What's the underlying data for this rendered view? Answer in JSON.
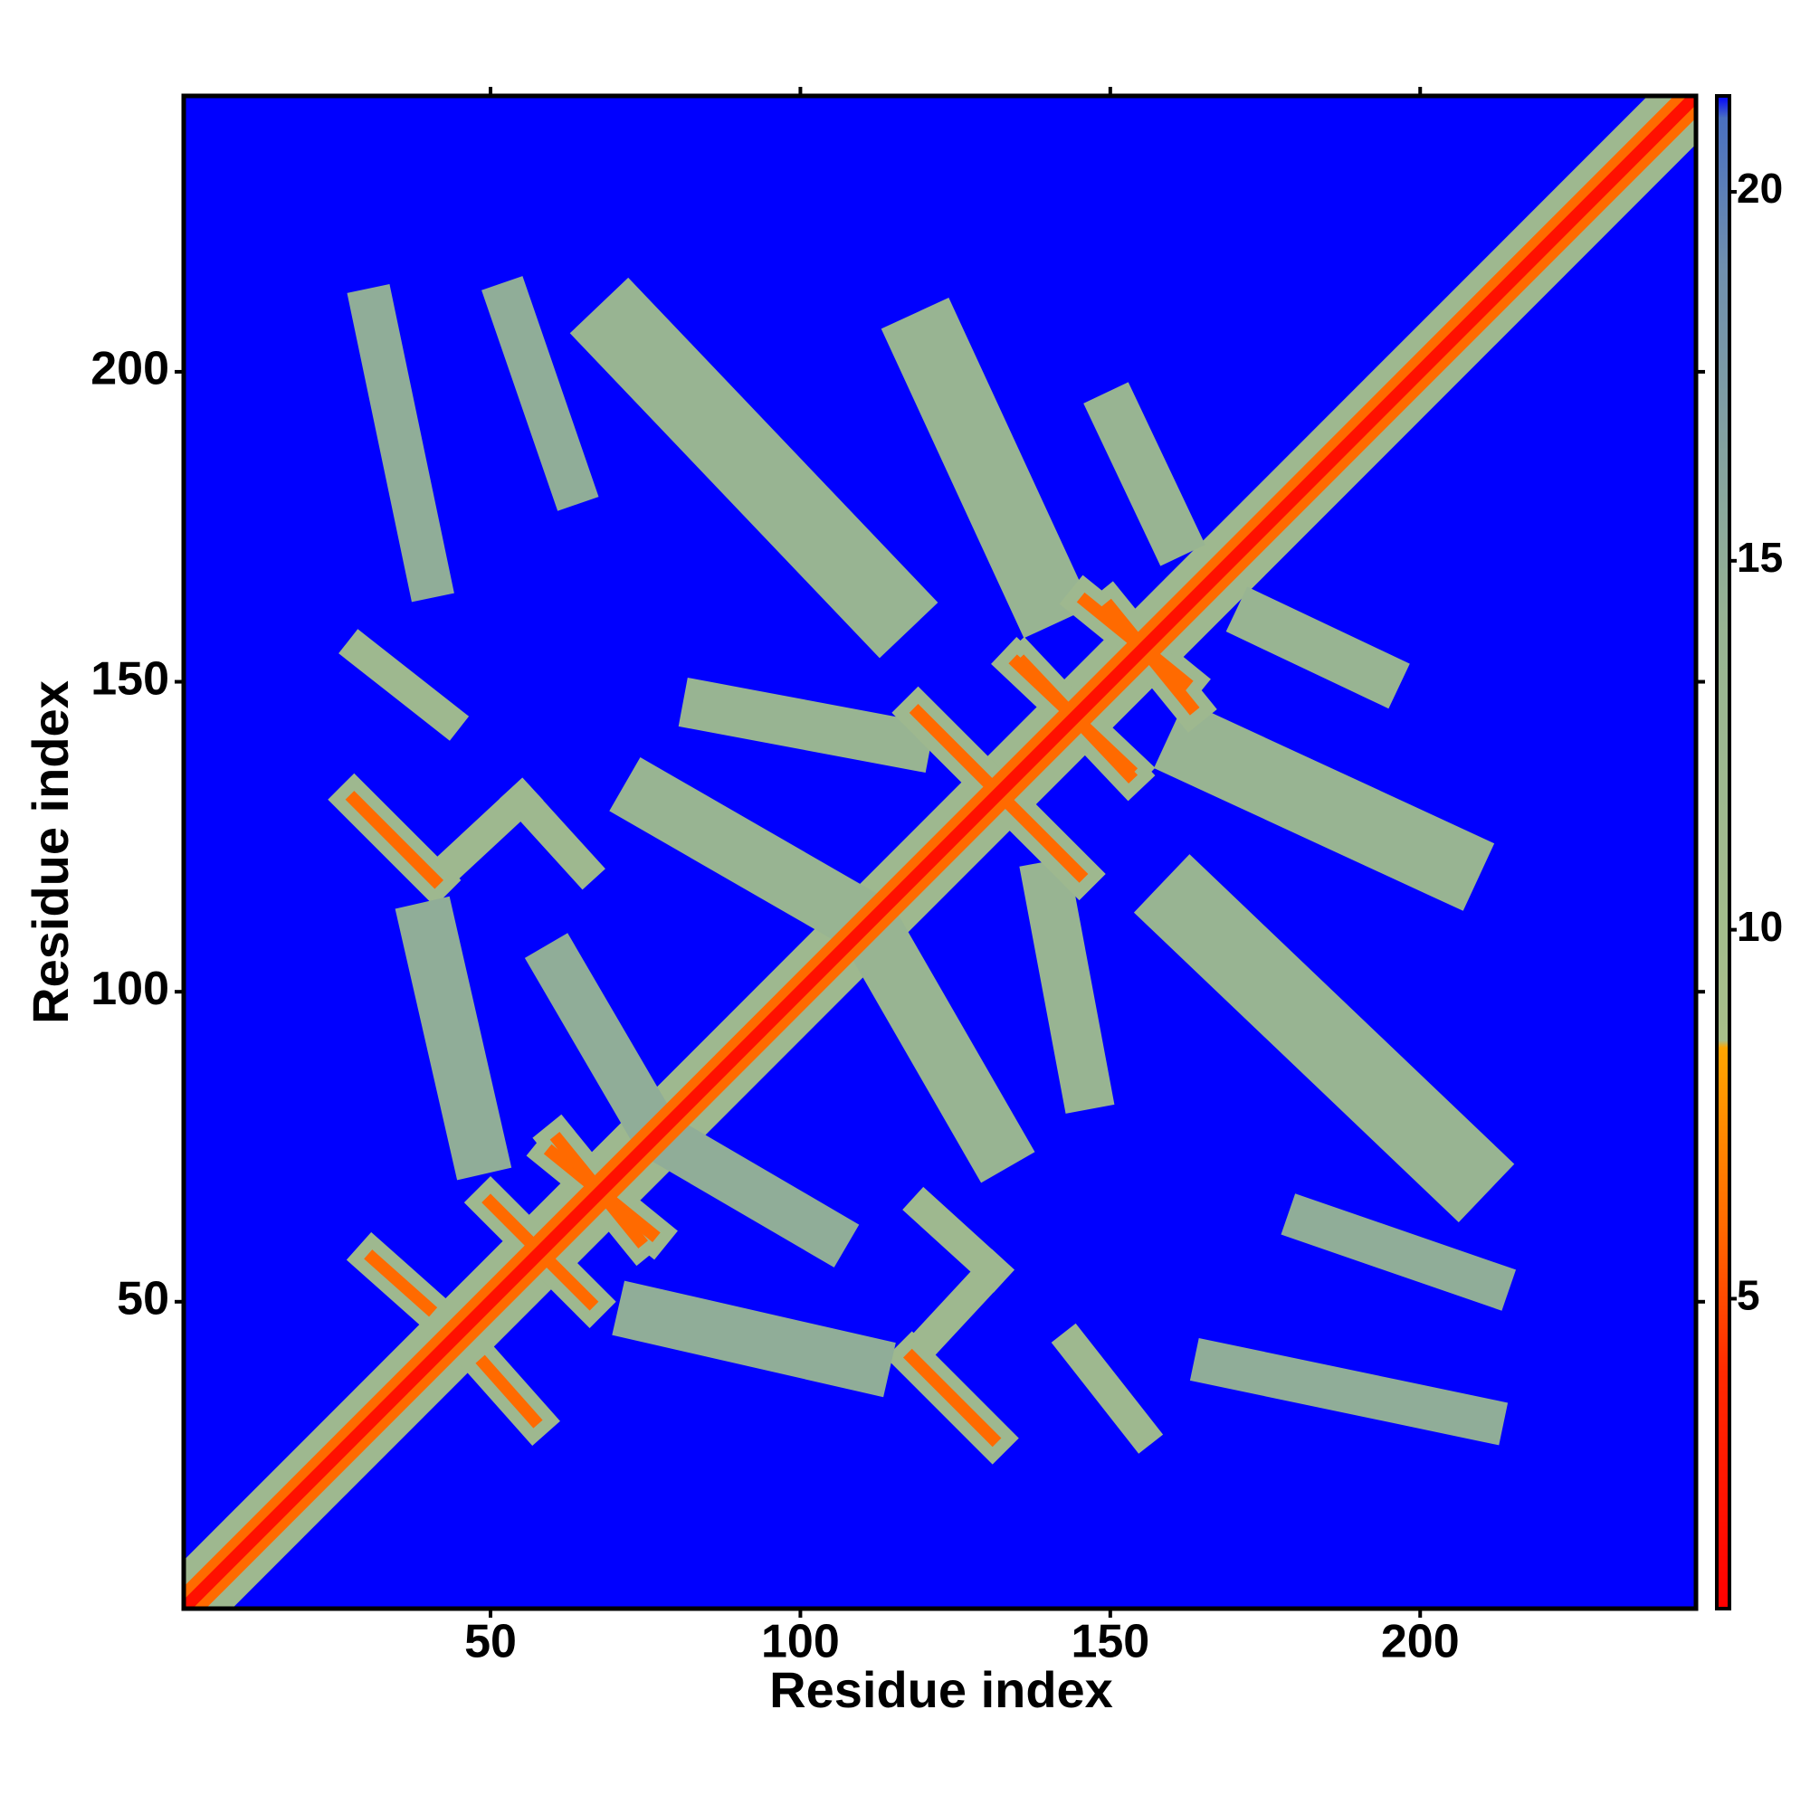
{
  "chart_data": {
    "type": "heatmap",
    "x_label": "Residue index",
    "y_label": "Residue index",
    "xlim": [
      0.5,
      244.5
    ],
    "ylim": [
      0.5,
      244.5
    ],
    "xticks": [
      50,
      100,
      150,
      200
    ],
    "yticks": [
      50,
      100,
      150,
      200
    ],
    "clim": [
      0.8,
      21.3
    ],
    "cticks": [
      5,
      10,
      15,
      20
    ],
    "colormap": [
      {
        "value": 0.8,
        "color": "#ff0000"
      },
      {
        "value": 4,
        "color": "#ff2a00"
      },
      {
        "value": 6,
        "color": "#ff6a00"
      },
      {
        "value": 8.4,
        "color": "#ffa500"
      },
      {
        "value": 8.5,
        "color": "#a8bf8a"
      },
      {
        "value": 14,
        "color": "#98b492"
      },
      {
        "value": 19,
        "color": "#6f8fae"
      },
      {
        "value": 21,
        "color": "#4a70c0"
      },
      {
        "value": 21.3,
        "color": "#0000ff"
      }
    ],
    "background": 21.3,
    "symmetric": true,
    "features": [
      {
        "from": [
          1,
          1
        ],
        "to": [
          244,
          244
        ],
        "width": 11,
        "value": 12
      },
      {
        "from": [
          31,
          210
        ],
        "to": [
          40,
          167
        ],
        "width": 7,
        "value": 15
      },
      {
        "from": [
          53,
          211
        ],
        "to": [
          63,
          182
        ],
        "width": 7,
        "value": 15
      },
      {
        "from": [
          72,
          206
        ],
        "to": [
          113,
          163
        ],
        "width": 13,
        "value": 14
      },
      {
        "from": [
          121,
          204
        ],
        "to": [
          139,
          165
        ],
        "width": 12,
        "value": 14
      },
      {
        "from": [
          151,
          193
        ],
        "to": [
          160,
          174
        ],
        "width": 8,
        "value": 14
      },
      {
        "from": [
          29,
          155
        ],
        "to": [
          43,
          144
        ],
        "width": 5,
        "value": 12
      },
      {
        "from": [
          28,
          131
        ],
        "to": [
          41,
          118
        ],
        "width": 6,
        "value": 12
      },
      {
        "from": [
          41,
          118
        ],
        "to": [
          55,
          131
        ],
        "width": 5,
        "value": 12
      },
      {
        "from": [
          55,
          131
        ],
        "to": [
          65,
          120
        ],
        "width": 5,
        "value": 12
      },
      {
        "from": [
          40,
          110
        ],
        "to": [
          48,
          75
        ],
        "width": 9,
        "value": 15
      },
      {
        "from": [
          61,
          104
        ],
        "to": [
          75,
          80
        ],
        "width": 8,
        "value": 15
      },
      {
        "from": [
          85,
          146
        ],
        "to": [
          117,
          140
        ],
        "width": 8,
        "value": 14
      },
      {
        "from": [
          76,
          131
        ],
        "to": [
          109,
          112
        ],
        "width": 10,
        "value": 14
      },
      {
        "from": [
          119,
          145
        ],
        "to": [
          145,
          119
        ],
        "width": 6,
        "value": 12
      },
      {
        "from": [
          50,
          66
        ],
        "to": [
          66,
          50
        ],
        "width": 6,
        "value": 12
      },
      {
        "from": [
          31,
          57
        ],
        "to": [
          40,
          49
        ],
        "width": 6,
        "value": 12
      },
      {
        "from": [
          60,
          74
        ],
        "to": [
          76,
          61
        ],
        "width": 6,
        "value": 12
      },
      {
        "from": [
          135,
          153
        ],
        "to": [
          153,
          136
        ],
        "width": 6,
        "value": 12
      },
      {
        "from": [
          146,
          163
        ],
        "to": [
          162,
          150
        ],
        "width": 6,
        "value": 12
      },
      {
        "from": [
          1,
          1
        ],
        "to": [
          244,
          244
        ],
        "width": 5,
        "value": 6
      },
      {
        "from": [
          28,
          131
        ],
        "to": [
          41,
          118
        ],
        "width": 2,
        "value": 6
      },
      {
        "from": [
          119,
          145
        ],
        "to": [
          145,
          119
        ],
        "width": 2,
        "value": 6
      },
      {
        "from": [
          50,
          66
        ],
        "to": [
          66,
          50
        ],
        "width": 2,
        "value": 6
      },
      {
        "from": [
          31,
          57
        ],
        "to": [
          40,
          49
        ],
        "width": 2,
        "value": 6
      },
      {
        "from": [
          60,
          74
        ],
        "to": [
          76,
          61
        ],
        "width": 2,
        "value": 6
      },
      {
        "from": [
          135,
          153
        ],
        "to": [
          153,
          136
        ],
        "width": 2,
        "value": 6
      },
      {
        "from": [
          146,
          163
        ],
        "to": [
          162,
          150
        ],
        "width": 2,
        "value": 6
      },
      {
        "from": [
          1,
          1
        ],
        "to": [
          244,
          244
        ],
        "width": 2,
        "value": 2
      }
    ]
  }
}
